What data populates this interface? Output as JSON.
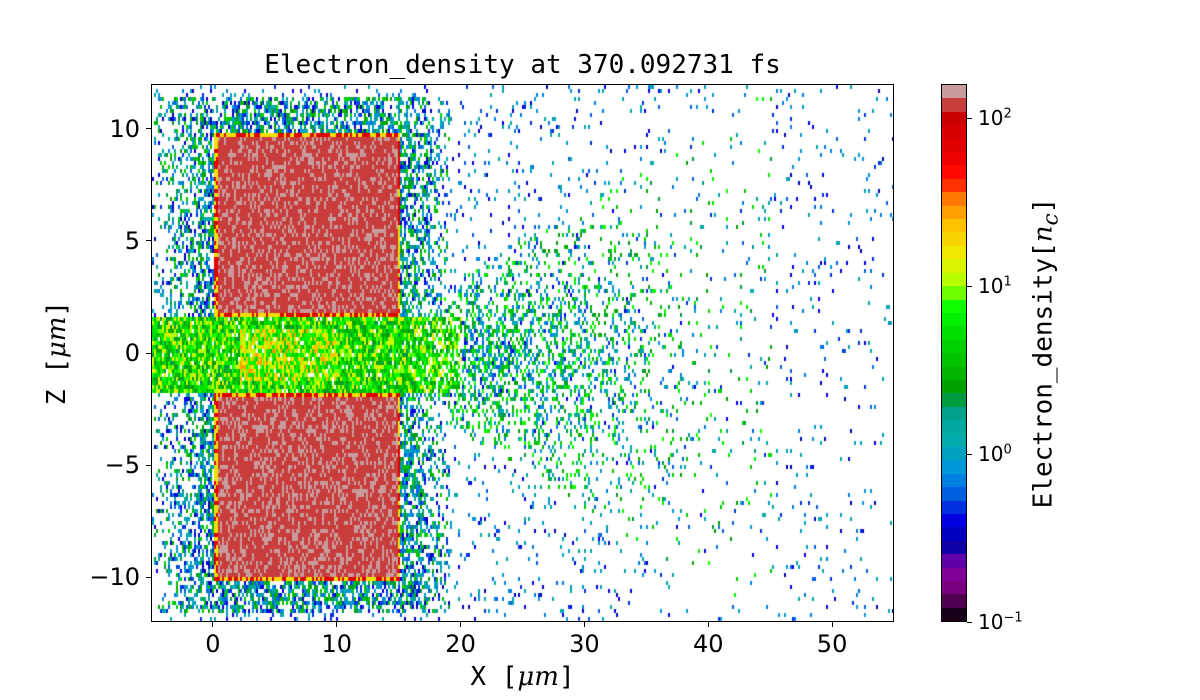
{
  "chart_data": {
    "type": "heatmap",
    "title": "Electron_density at 370.092731 fs",
    "xlabel_prefix": "X  [",
    "xlabel_unit": "μm",
    "xlabel_suffix": "]",
    "ylabel_prefix": "Z  [",
    "ylabel_unit": "μm",
    "ylabel_suffix": "]",
    "xlim": [
      -5,
      55
    ],
    "ylim": [
      -12,
      12
    ],
    "xticks": [
      0,
      10,
      20,
      30,
      40,
      50
    ],
    "xtick_labels": [
      "0",
      "10",
      "20",
      "30",
      "40",
      "50"
    ],
    "yticks": [
      -10,
      -5,
      0,
      5,
      10
    ],
    "ytick_labels": [
      "−10",
      "−5",
      "0",
      "5",
      "10"
    ],
    "colorbar": {
      "label_prefix": "Electron_density[",
      "label_unit": "n",
      "label_sub": "c",
      "label_suffix": "]",
      "scale": "log",
      "range": [
        0.1,
        160
      ],
      "ticks": [
        {
          "value": 100,
          "base": "10",
          "exp": "2"
        },
        {
          "value": 10,
          "base": "10",
          "exp": "1"
        },
        {
          "value": 1,
          "base": "10",
          "exp": "0"
        },
        {
          "value": 0.1,
          "base": "10",
          "exp": "−1"
        }
      ],
      "colors_top_to_bottom": [
        "#c89c9c",
        "#c83c3c",
        "#cc0000",
        "#d80000",
        "#e00000",
        "#f00000",
        "#ff0a00",
        "#ff3000",
        "#ff7800",
        "#ffa000",
        "#ffc000",
        "#f8d400",
        "#f0e800",
        "#d8f400",
        "#b8ff00",
        "#70ff00",
        "#10ff00",
        "#00f000",
        "#00e000",
        "#00d000",
        "#00c400",
        "#00b400",
        "#00a000",
        "#009a40",
        "#00a08a",
        "#00a8a0",
        "#00aaaa",
        "#00a0c0",
        "#0098d8",
        "#0080e0",
        "#0060e0",
        "#0030e0",
        "#0000e0",
        "#0000c0",
        "#1000a8",
        "#6000a8",
        "#800098",
        "#780080",
        "#500050",
        "#180018"
      ]
    },
    "structures": [
      {
        "name": "upper slab",
        "x": [
          0,
          15
        ],
        "z": [
          1.7,
          10
        ],
        "density": 100
      },
      {
        "name": "lower slab",
        "x": [
          0,
          15
        ],
        "z": [
          -10,
          -1.7
        ],
        "density": 100
      },
      {
        "name": "channel plasma",
        "x": [
          -5,
          20
        ],
        "z": [
          -1.7,
          1.7
        ],
        "density": 10
      },
      {
        "name": "expanding plume",
        "x": [
          15,
          45
        ],
        "z": [
          -6,
          6
        ],
        "density": 1
      },
      {
        "name": "sparse background",
        "x": [
          -5,
          55
        ],
        "z": [
          -12,
          12
        ],
        "density": 0.5
      }
    ]
  }
}
